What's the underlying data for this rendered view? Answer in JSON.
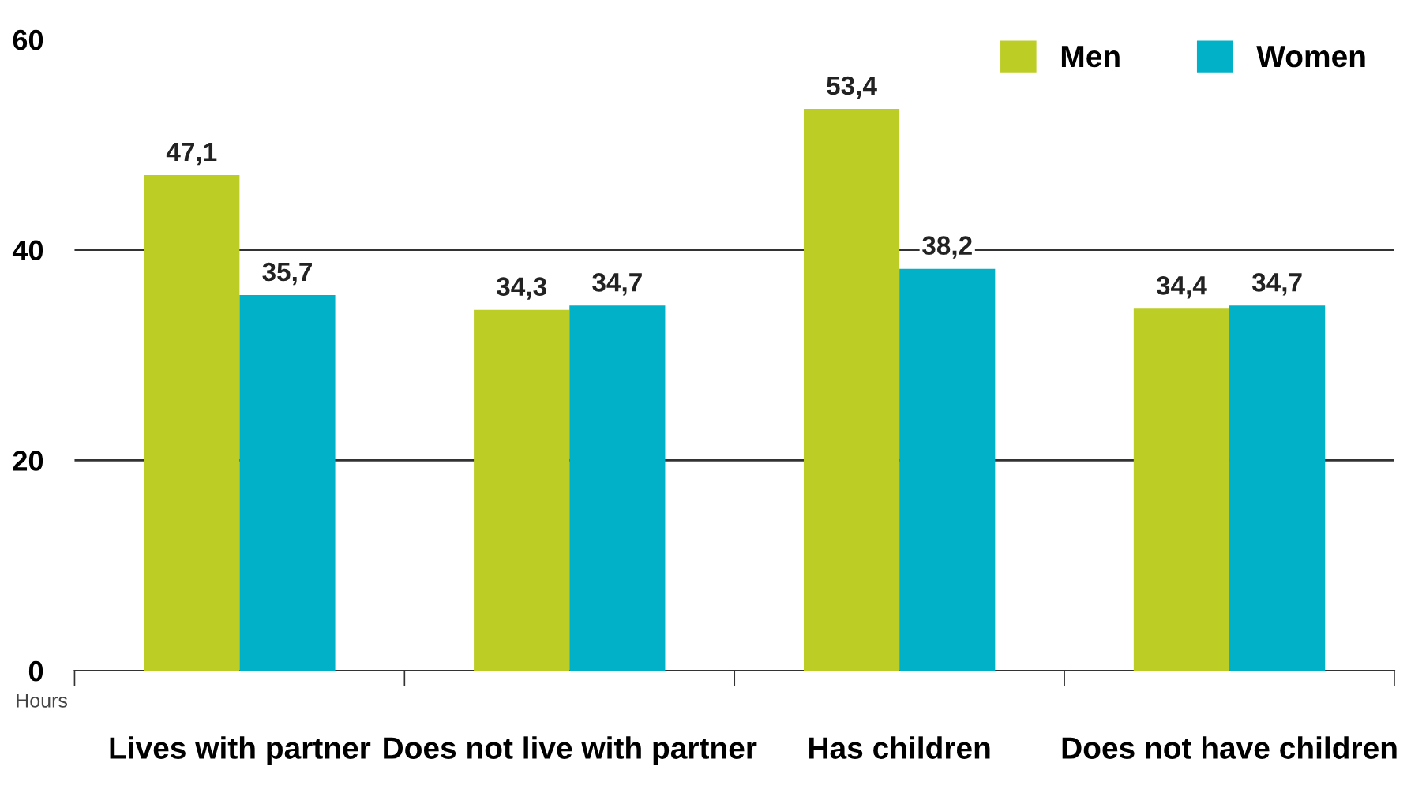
{
  "chart_data": {
    "type": "bar",
    "ylabel": "Hours",
    "categories": [
      "Lives with partner",
      "Does not live with partner",
      "Has children",
      "Does not have children"
    ],
    "series": [
      {
        "name": "Men",
        "color": "#bccd26",
        "values": [
          47.1,
          34.3,
          53.4,
          34.4
        ],
        "value_labels": [
          "47,1",
          "34,3",
          "53,4",
          "34,4"
        ]
      },
      {
        "name": "Women",
        "color": "#00b1c8",
        "values": [
          35.7,
          34.7,
          38.2,
          34.7
        ],
        "value_labels": [
          "35,7",
          "34,7",
          "38,2",
          "34,7"
        ]
      }
    ],
    "ylim": [
      0,
      60
    ],
    "yticks": [
      0,
      20,
      40,
      60
    ],
    "grid": "y",
    "legend": "top right"
  }
}
